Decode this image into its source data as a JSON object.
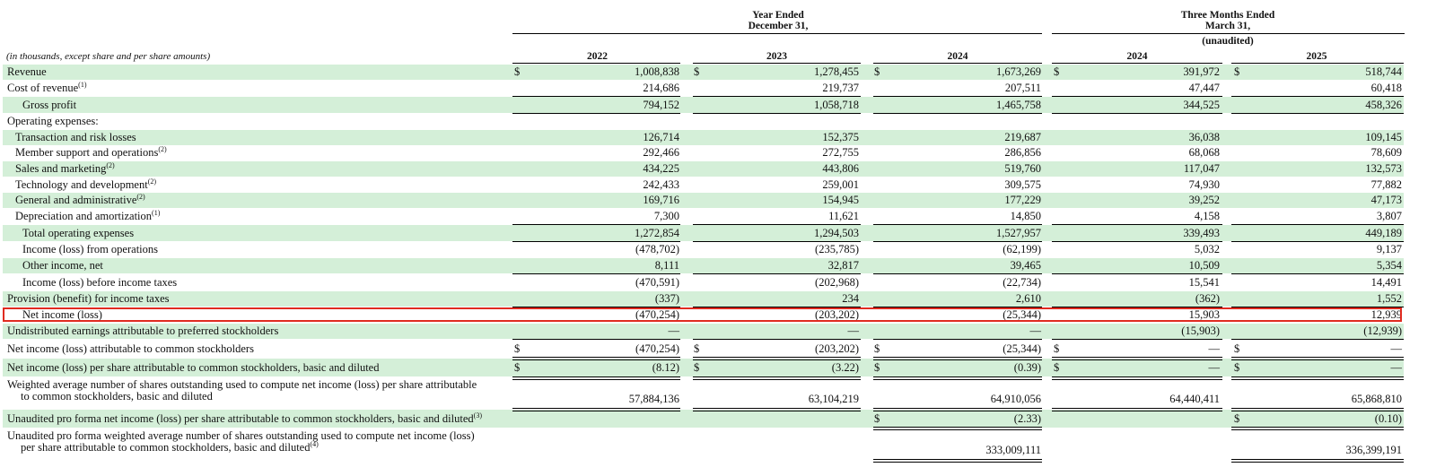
{
  "header": {
    "group_year": "Year Ended\nDecember 31,",
    "group_quarter": "Three Months Ended\nMarch 31,",
    "unaudited": "(unaudited)",
    "units_note": "(in thousands, except share and per share amounts)",
    "columns": [
      "2022",
      "2023",
      "2024",
      "2024",
      "2025"
    ]
  },
  "colors": {
    "row_shade": "#d4efd8",
    "highlight_border": "#e02b20"
  },
  "highlighted_row": "Net income (loss)",
  "rows": [
    {
      "label": "Revenue",
      "values": [
        "1,008,838",
        "1,278,455",
        "1,673,269",
        "391,972",
        "518,744"
      ],
      "dollar": true
    },
    {
      "label": "Cost of revenue",
      "sup": "(1)",
      "values": [
        "214,686",
        "219,737",
        "207,511",
        "47,447",
        "60,418"
      ]
    },
    {
      "label": "Gross profit",
      "values": [
        "794,152",
        "1,058,718",
        "1,465,758",
        "344,525",
        "458,326"
      ]
    },
    {
      "label": "Operating expenses:",
      "values": []
    },
    {
      "label": "Transaction and risk losses",
      "values": [
        "126,714",
        "152,375",
        "219,687",
        "36,038",
        "109,145"
      ]
    },
    {
      "label": "Member support and operations",
      "sup": "(2)",
      "values": [
        "292,466",
        "272,755",
        "286,856",
        "68,068",
        "78,609"
      ]
    },
    {
      "label": "Sales and marketing",
      "sup": "(2)",
      "values": [
        "434,225",
        "443,806",
        "519,760",
        "117,047",
        "132,573"
      ]
    },
    {
      "label": "Technology and development",
      "sup": "(2)",
      "values": [
        "242,433",
        "259,001",
        "309,575",
        "74,930",
        "77,882"
      ]
    },
    {
      "label": "General and administrative",
      "sup": "(2)",
      "values": [
        "169,716",
        "154,945",
        "177,229",
        "39,252",
        "47,173"
      ]
    },
    {
      "label": "Depreciation and amortization",
      "sup": "(1)",
      "values": [
        "7,300",
        "11,621",
        "14,850",
        "4,158",
        "3,807"
      ]
    },
    {
      "label": "Total operating expenses",
      "values": [
        "1,272,854",
        "1,294,503",
        "1,527,957",
        "339,493",
        "449,189"
      ]
    },
    {
      "label": "Income (loss) from operations",
      "values": [
        "(478,702)",
        "(235,785)",
        "(62,199)",
        "5,032",
        "9,137"
      ]
    },
    {
      "label": "Other income, net",
      "values": [
        "8,111",
        "32,817",
        "39,465",
        "10,509",
        "5,354"
      ]
    },
    {
      "label": "Income (loss) before income taxes",
      "values": [
        "(470,591)",
        "(202,968)",
        "(22,734)",
        "15,541",
        "14,491"
      ]
    },
    {
      "label": "Provision (benefit) for income taxes",
      "values": [
        "(337)",
        "234",
        "2,610",
        "(362)",
        "1,552"
      ]
    },
    {
      "label": "Net income (loss)",
      "values": [
        "(470,254)",
        "(203,202)",
        "(25,344)",
        "15,903",
        "12,939"
      ]
    },
    {
      "label": "Undistributed earnings attributable to preferred stockholders",
      "values": [
        "—",
        "—",
        "—",
        "(15,903)",
        "(12,939)"
      ]
    },
    {
      "label": "Net income (loss) attributable to common stockholders",
      "values": [
        "(470,254)",
        "(203,202)",
        "(25,344)",
        "—",
        "—"
      ],
      "dollar": true
    },
    {
      "label": "Net income (loss) per share attributable to common stockholders, basic and diluted",
      "values": [
        "(8.12)",
        "(3.22)",
        "(0.39)",
        "—",
        "—"
      ],
      "dollar": true
    },
    {
      "label": "Weighted average number of shares outstanding used to compute net income (loss) per share attributable\nto common stockholders, basic and diluted",
      "values": [
        "57,884,136",
        "63,104,219",
        "64,910,056",
        "64,440,411",
        "65,868,810"
      ]
    },
    {
      "label": "Unaudited pro forma net income (loss) per share attributable to common stockholders, basic and diluted",
      "sup": "(3)",
      "values": [
        "",
        "",
        "(2.33)",
        "",
        "(0.10)"
      ],
      "dollar": true
    },
    {
      "label": "Unaudited pro forma weighted average number of shares outstanding used to compute net income (loss)\nper share attributable to common stockholders, basic and diluted",
      "sup": "(4)",
      "values": [
        "",
        "",
        "333,009,111",
        "",
        "336,399,191"
      ]
    }
  ]
}
